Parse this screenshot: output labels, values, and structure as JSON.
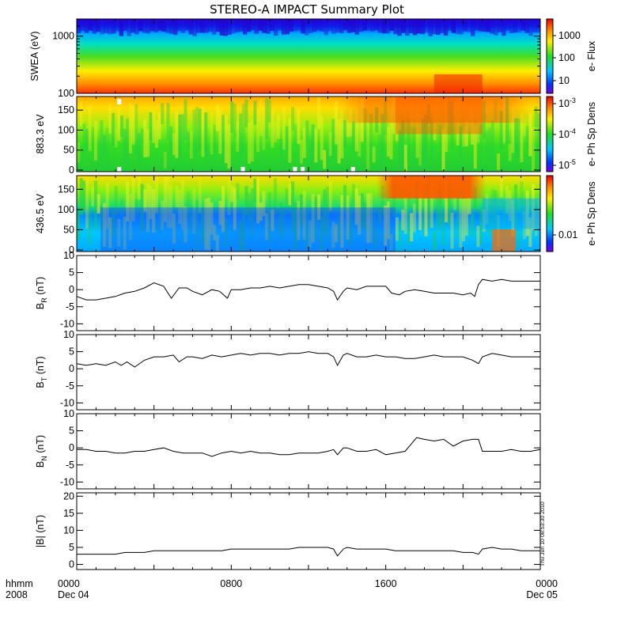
{
  "title": "STEREO-A IMPACT Summary Plot",
  "stamp": "Thu Jun 10 08:53:30 2010",
  "time_axis": {
    "row_label": "hhmm",
    "year_label": "2008",
    "ticks": [
      {
        "label": "0000",
        "sub": "Dec 04",
        "hours": 0
      },
      {
        "label": "0800",
        "sub": "",
        "hours": 8
      },
      {
        "label": "1600",
        "sub": "",
        "hours": 16
      },
      {
        "label": "0000",
        "sub": "Dec 05",
        "hours": 24
      }
    ]
  },
  "chart_data": [
    {
      "type": "heatmap",
      "ylabel": "SWEA (eV)",
      "y_scale": "log",
      "ylim": [
        100,
        2000
      ],
      "yticks": [
        "100",
        "1000"
      ],
      "colorbar_label": "e- Flux",
      "colorbar_scale": "log",
      "colorbar_ticks": [
        "10",
        "100",
        "1000"
      ],
      "pattern": "energy spectrogram: flux decreases with energy; red near 100 eV, green ~400 eV, blue above ~1000 eV"
    },
    {
      "type": "heatmap",
      "ylabel": "883.3 eV",
      "ylim": [
        0,
        180
      ],
      "yticks": [
        "0",
        "50",
        "100",
        "150"
      ],
      "colorbar_label": "e- Ph Sp Dens",
      "colorbar_scale": "log",
      "colorbar_ticks": [
        "10^-5",
        "10^-4",
        "10^-3"
      ],
      "pattern": "pitch-angle distribution, mostly green-yellow; stronger (red) near 180 deg around 16-20 hhmm"
    },
    {
      "type": "heatmap",
      "ylabel": "436.5 eV",
      "ylim": [
        0,
        180
      ],
      "yticks": [
        "0",
        "50",
        "100",
        "150"
      ],
      "colorbar_label": "e- Ph Sp Dens",
      "colorbar_scale": "log",
      "colorbar_ticks": [
        "0.01"
      ],
      "pattern": "pitch-angle distribution, blue at 0-100 deg until ~17 hhmm, red strahl near 180 deg 16.5-21 hhmm"
    },
    {
      "type": "line",
      "ylabel": "B_R (nT)",
      "ylim": [
        -12,
        10
      ],
      "yticks": [
        "-10",
        "-5",
        "0",
        "5",
        "10"
      ],
      "series": [
        {
          "x": [
            0,
            0.5,
            1,
            1.5,
            2,
            2.5,
            3,
            3.5,
            4,
            4.5,
            4.9,
            5.3,
            5.7,
            6,
            6.5,
            7,
            7.4,
            7.8,
            8,
            8.5,
            9,
            9.5,
            10,
            10.5,
            11,
            11.5,
            12,
            12.5,
            13,
            13.3,
            13.5,
            13.8,
            14,
            14.5,
            15,
            15.5,
            16,
            16.3,
            16.7,
            17,
            17.5,
            18,
            18.5,
            19,
            19.5,
            20,
            20.4,
            20.6,
            20.8,
            21,
            21.5,
            22,
            22.5,
            23,
            23.5,
            24
          ],
          "y": [
            -2,
            -3,
            -3,
            -2.5,
            -2,
            -1,
            -0.5,
            0.5,
            2,
            1,
            -2.5,
            0.5,
            0.5,
            -0.5,
            -1.5,
            0,
            -0.5,
            -2.5,
            0,
            0,
            0.5,
            0.5,
            1,
            0.5,
            1,
            1.5,
            1.5,
            1,
            0.5,
            -0.5,
            -3,
            -0.5,
            0.5,
            0,
            1,
            1,
            1,
            -1,
            -1.5,
            -0.5,
            0,
            -0.5,
            -1,
            -1,
            -1,
            -1.5,
            -1,
            -2,
            1.5,
            3,
            2.5,
            3,
            2.5,
            2.5,
            2.5,
            2.5
          ]
        }
      ]
    },
    {
      "type": "line",
      "ylabel": "B_T (nT)",
      "ylim": [
        -12,
        10
      ],
      "yticks": [
        "-10",
        "-5",
        "0",
        "5",
        "10"
      ],
      "series": [
        {
          "x": [
            0,
            0.5,
            1,
            1.5,
            2,
            2.3,
            2.6,
            3,
            3.5,
            4,
            4.5,
            5,
            5.3,
            5.7,
            6,
            6.5,
            7,
            7.5,
            8,
            8.5,
            9,
            9.5,
            10,
            10.5,
            11,
            11.5,
            12,
            12.5,
            13,
            13.3,
            13.5,
            13.8,
            14,
            14.5,
            15,
            15.5,
            16,
            16.5,
            17,
            17.5,
            18,
            18.5,
            19,
            19.5,
            20,
            20.5,
            20.8,
            21,
            21.5,
            22,
            22.5,
            23,
            23.5,
            24
          ],
          "y": [
            1.5,
            1,
            1.5,
            1,
            2,
            1,
            2,
            0.5,
            2.5,
            3.5,
            3.5,
            4,
            2,
            3.5,
            3.5,
            3,
            4,
            3.5,
            4,
            4.5,
            4,
            4.5,
            4.5,
            4,
            4.5,
            4.5,
            5,
            4.5,
            4.5,
            3.5,
            1,
            4,
            4.5,
            3.5,
            3.5,
            4,
            3.5,
            3.5,
            3,
            3,
            3.5,
            4,
            3.5,
            3.5,
            3.5,
            2.5,
            1.5,
            3.5,
            4.5,
            4,
            3.5,
            3.5,
            3.5,
            3.5
          ]
        }
      ]
    },
    {
      "type": "line",
      "ylabel": "B_N (nT)",
      "ylim": [
        -12,
        10
      ],
      "yticks": [
        "-10",
        "-5",
        "0",
        "5",
        "10"
      ],
      "series": [
        {
          "x": [
            0,
            0.5,
            1,
            1.5,
            2,
            2.5,
            3,
            3.5,
            4,
            4.5,
            5,
            5.5,
            6,
            6.5,
            7,
            7.5,
            8,
            8.5,
            9,
            9.5,
            10,
            10.5,
            11,
            11.5,
            12,
            12.5,
            13,
            13.3,
            13.5,
            13.8,
            14,
            14.5,
            15,
            15.5,
            16,
            16.5,
            17,
            17.3,
            17.6,
            18,
            18.5,
            19,
            19.5,
            20,
            20.5,
            20.8,
            21,
            21.5,
            22,
            22.5,
            23,
            23.5,
            24
          ],
          "y": [
            -0.5,
            -0.5,
            -1,
            -1,
            -1.5,
            -1.5,
            -1,
            -1,
            -0.5,
            0,
            -1,
            -1.5,
            -1.5,
            -1.5,
            -2.5,
            -1.5,
            -1,
            -1.5,
            -1,
            -1.5,
            -1.5,
            -2,
            -2,
            -1.5,
            -1.5,
            -1.5,
            -1,
            -0.5,
            -2,
            0,
            0,
            -1,
            -1,
            -0.5,
            -2,
            -1.5,
            -1,
            1,
            3,
            2.5,
            2,
            2.5,
            0.5,
            2,
            2.5,
            2.5,
            -1,
            -1,
            -1,
            -0.5,
            -1,
            -1,
            -0.5
          ]
        }
      ]
    },
    {
      "type": "line",
      "ylabel": "|B| (nT)",
      "ylim": [
        -1.5,
        21
      ],
      "yticks": [
        "0",
        "5",
        "10",
        "15",
        "20"
      ],
      "series": [
        {
          "x": [
            0,
            0.5,
            1,
            1.5,
            2,
            2.5,
            3,
            3.5,
            4,
            4.5,
            5,
            5.5,
            6,
            6.5,
            7,
            7.5,
            8,
            8.5,
            9,
            9.5,
            10,
            10.5,
            11,
            11.5,
            12,
            12.5,
            13,
            13.3,
            13.5,
            13.8,
            14,
            14.5,
            15,
            15.5,
            16,
            16.5,
            17,
            17.5,
            18,
            18.5,
            19,
            19.5,
            20,
            20.5,
            20.8,
            21,
            21.5,
            22,
            22.5,
            23,
            23.5,
            24
          ],
          "y": [
            3,
            3,
            3,
            3,
            3,
            3.5,
            3.5,
            3.5,
            4,
            4,
            4,
            4,
            4,
            4,
            4,
            4,
            4.5,
            4.5,
            4.5,
            4.5,
            4.5,
            4.5,
            4.5,
            5,
            5,
            5,
            5,
            4.5,
            2.5,
            4.5,
            5,
            4.5,
            4.5,
            4.5,
            4.5,
            4,
            4,
            4,
            4,
            4,
            4,
            4,
            3.5,
            3.5,
            3,
            4.5,
            5,
            4.5,
            4.5,
            4,
            4,
            4
          ]
        }
      ]
    }
  ]
}
